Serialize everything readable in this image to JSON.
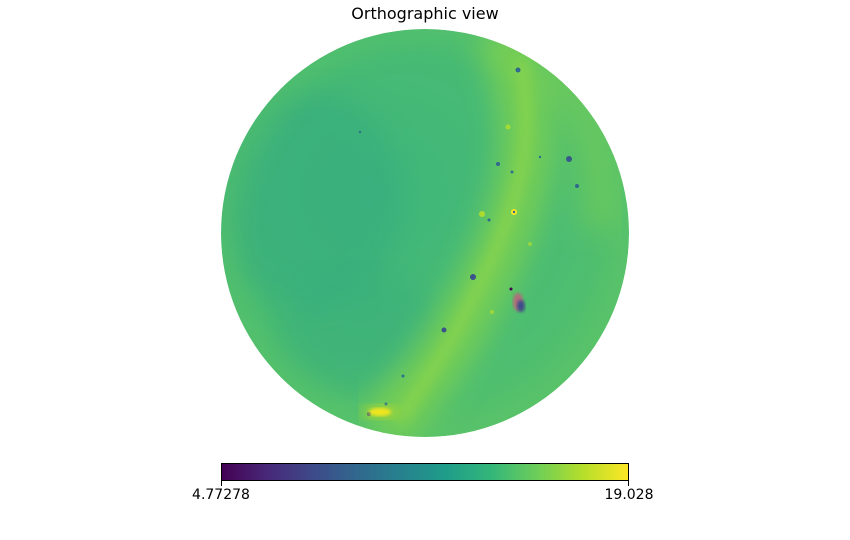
{
  "title": "Orthographic view",
  "projection": "orthographic",
  "colormap": "viridis",
  "colorbar": {
    "min_label": "4.77278",
    "max_label": "19.028",
    "min_value": 4.77278,
    "max_value": 19.028,
    "orientation": "horizontal"
  },
  "map_summary": {
    "dominant_value_range": [
      13.0,
      16.0
    ],
    "bright_band": "diagonal band from top-right toward bottom, values ~15-17",
    "hotspots": [
      {
        "label": "lower-left bright source",
        "approx_value": 18.8
      },
      {
        "label": "right-center bright point",
        "approx_value": 18.5
      }
    ],
    "cold_spots": [
      {
        "label": "right-center dark clump",
        "approx_value": 8.5
      },
      {
        "label": "scattered small dark points",
        "approx_value": 11.0
      }
    ]
  }
}
